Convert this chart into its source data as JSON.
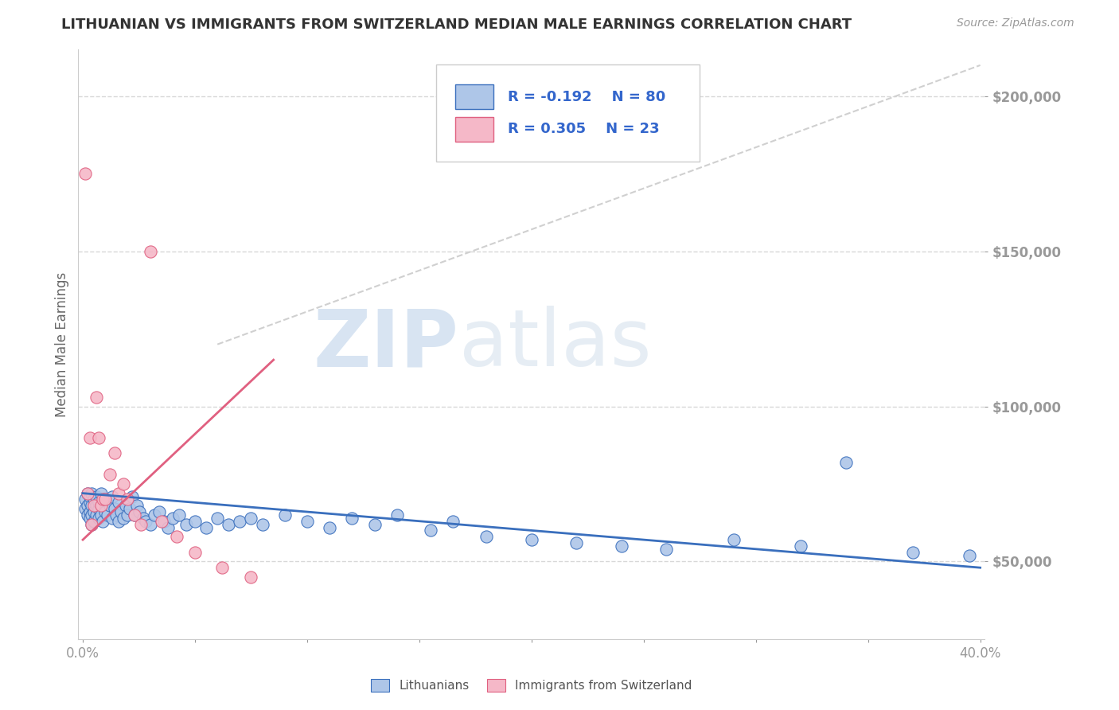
{
  "title": "LITHUANIAN VS IMMIGRANTS FROM SWITZERLAND MEDIAN MALE EARNINGS CORRELATION CHART",
  "source": "Source: ZipAtlas.com",
  "ylabel": "Median Male Earnings",
  "watermark": "ZIPatlas",
  "xlim": [
    -0.002,
    0.402
  ],
  "ylim": [
    25000,
    215000
  ],
  "yticks": [
    50000,
    100000,
    150000,
    200000
  ],
  "ytick_labels": [
    "$50,000",
    "$100,000",
    "$150,000",
    "$200,000"
  ],
  "xticks": [
    0.0,
    0.05,
    0.1,
    0.15,
    0.2,
    0.25,
    0.3,
    0.35,
    0.4
  ],
  "blue_R": -0.192,
  "blue_N": 80,
  "pink_R": 0.305,
  "pink_N": 23,
  "blue_color": "#aec6e8",
  "blue_line_color": "#3a6fbd",
  "pink_color": "#f5b8c8",
  "pink_line_color": "#e06080",
  "trend_line_color": "#d0d0d0",
  "background_color": "#ffffff",
  "grid_color": "#d8d8d8",
  "legend_text_color": "#3366cc",
  "title_color": "#333333",
  "source_color": "#999999",
  "ylabel_color": "#666666",
  "xtick_color": "#666666",
  "blue_scatter_x": [
    0.001,
    0.001,
    0.002,
    0.002,
    0.002,
    0.003,
    0.003,
    0.003,
    0.003,
    0.004,
    0.004,
    0.004,
    0.004,
    0.005,
    0.005,
    0.005,
    0.006,
    0.006,
    0.006,
    0.007,
    0.007,
    0.007,
    0.008,
    0.008,
    0.009,
    0.009,
    0.01,
    0.01,
    0.011,
    0.012,
    0.013,
    0.013,
    0.014,
    0.015,
    0.016,
    0.016,
    0.017,
    0.018,
    0.019,
    0.02,
    0.021,
    0.022,
    0.023,
    0.024,
    0.025,
    0.027,
    0.028,
    0.03,
    0.032,
    0.034,
    0.036,
    0.038,
    0.04,
    0.043,
    0.046,
    0.05,
    0.055,
    0.06,
    0.065,
    0.07,
    0.075,
    0.08,
    0.09,
    0.1,
    0.11,
    0.12,
    0.13,
    0.14,
    0.155,
    0.165,
    0.18,
    0.2,
    0.22,
    0.24,
    0.26,
    0.29,
    0.32,
    0.34,
    0.37,
    0.395
  ],
  "blue_scatter_y": [
    70000,
    67000,
    68000,
    72000,
    65000,
    66000,
    69000,
    71000,
    64000,
    68000,
    65000,
    72000,
    62000,
    66000,
    70000,
    63000,
    65000,
    68000,
    71000,
    67000,
    64000,
    69000,
    65000,
    72000,
    68000,
    63000,
    66000,
    70000,
    65000,
    68000,
    64000,
    71000,
    67000,
    65000,
    69000,
    63000,
    66000,
    64000,
    68000,
    65000,
    67000,
    71000,
    65000,
    68000,
    66000,
    64000,
    63000,
    62000,
    65000,
    66000,
    63000,
    61000,
    64000,
    65000,
    62000,
    63000,
    61000,
    64000,
    62000,
    63000,
    64000,
    62000,
    65000,
    63000,
    61000,
    64000,
    62000,
    65000,
    60000,
    63000,
    58000,
    57000,
    56000,
    55000,
    54000,
    57000,
    55000,
    82000,
    53000,
    52000
  ],
  "pink_scatter_x": [
    0.001,
    0.002,
    0.003,
    0.004,
    0.005,
    0.006,
    0.007,
    0.008,
    0.009,
    0.01,
    0.012,
    0.014,
    0.016,
    0.018,
    0.02,
    0.023,
    0.026,
    0.03,
    0.035,
    0.042,
    0.05,
    0.062,
    0.075
  ],
  "pink_scatter_y": [
    175000,
    72000,
    90000,
    62000,
    68000,
    103000,
    90000,
    68000,
    70000,
    70000,
    78000,
    85000,
    72000,
    75000,
    70000,
    65000,
    62000,
    150000,
    63000,
    58000,
    53000,
    48000,
    45000
  ],
  "blue_line_x": [
    0.0,
    0.4
  ],
  "blue_line_y": [
    72000,
    48000
  ],
  "pink_line_x": [
    0.0,
    0.085
  ],
  "pink_line_y": [
    57000,
    115000
  ],
  "gray_line_x": [
    0.06,
    0.4
  ],
  "gray_line_y": [
    120000,
    210000
  ],
  "scatter_size": 120
}
